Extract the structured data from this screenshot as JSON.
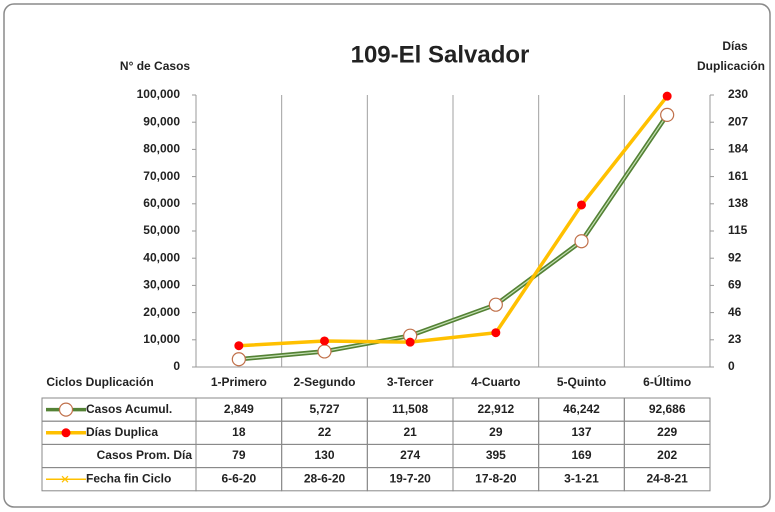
{
  "chart_data": {
    "type": "line",
    "title": "109-El Salvador",
    "y_label": "N° de Casos",
    "y2_label": [
      "Días",
      "Duplicación"
    ],
    "table_title": "Ciclos Duplicación",
    "categories": [
      "1-Primero",
      "2-Segundo",
      "3-Tercer",
      "4-Cuarto",
      "5-Quinto",
      "6-Último"
    ],
    "ylim": [
      0,
      100000
    ],
    "yticks": [
      0,
      {
        "value": 10000,
        "label": "10,000"
      },
      {
        "value": 20000,
        "label": "20,000"
      },
      {
        "value": 30000,
        "label": "30,000"
      },
      {
        "value": 40000,
        "label": "40,000"
      },
      {
        "value": 50000,
        "label": "50,000"
      },
      {
        "value": 60000,
        "label": "60,000"
      },
      {
        "value": 70000,
        "label": "70,000"
      },
      {
        "value": 80000,
        "label": "80,000"
      },
      {
        "value": 90000,
        "label": "90,000"
      },
      {
        "value": 100000,
        "label": "100,000"
      }
    ],
    "y2lim": [
      0,
      230
    ],
    "y2ticks": [
      0,
      23,
      46,
      69,
      92,
      115,
      138,
      161,
      184,
      207,
      230
    ],
    "series": [
      {
        "name": "Casos Acumul.",
        "color": "#548235",
        "marker": "circle-open",
        "values": [
          2849,
          5727,
          11508,
          22912,
          46242,
          92686
        ],
        "value_labels": [
          "2,849",
          "5,727",
          "11,508",
          "22,912",
          "46,242",
          "92,686"
        ]
      },
      {
        "name": "Días Duplica",
        "color": "#ffc000",
        "marker": "circle",
        "marker_color": "#ff0000",
        "axis": "y2",
        "values": [
          18,
          22,
          21,
          29,
          137,
          229
        ]
      },
      {
        "name": "Casos Prom. Día",
        "values": [
          79,
          130,
          274,
          395,
          169,
          202
        ]
      },
      {
        "name": "Fecha fin Ciclo",
        "color": "#ffc000",
        "marker": "x",
        "values": [
          "6-6-20",
          "28-6-20",
          "19-7-20",
          "17-8-20",
          "3-1-21",
          "24-8-21"
        ]
      }
    ]
  }
}
